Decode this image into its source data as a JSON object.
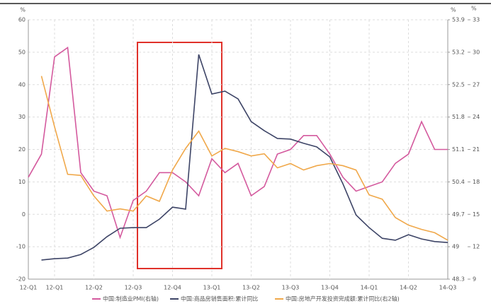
{
  "chart_data": {
    "type": "line",
    "axis_units": {
      "left": "%",
      "right": "%",
      "right2": "%"
    },
    "categories": [
      "12-Q1",
      null,
      "12-Q1",
      null,
      null,
      "12-Q2",
      null,
      null,
      "12-Q3",
      null,
      null,
      "12-Q4",
      null,
      null,
      "13-Q1",
      null,
      null,
      "13-Q2",
      null,
      null,
      "13-Q3",
      null,
      null,
      "13-Q4",
      null,
      null,
      "14-Q1",
      null,
      null,
      "14-Q2",
      null,
      null,
      "14-Q3"
    ],
    "ylim": [
      -20,
      60
    ],
    "yticks": [
      -20,
      -10,
      0,
      10,
      20,
      30,
      40,
      50,
      60
    ],
    "y2lim": [
      48.3,
      53.9
    ],
    "y2ticks": [
      48.3,
      49,
      49.7,
      50.4,
      51.1,
      51.8,
      52.5,
      53.2,
      53.9
    ],
    "y3lim": [
      9,
      33
    ],
    "y3ticks": [
      9,
      12,
      15,
      18,
      21,
      24,
      27,
      30,
      33
    ],
    "grid": true,
    "series": [
      {
        "name": "中国:制造业PMI(右轴)",
        "color": "#d45a9e",
        "axis": "y2",
        "values": [
          50.5,
          51.0,
          53.1,
          53.3,
          50.6,
          50.2,
          50.1,
          49.2,
          50.0,
          50.2,
          50.6,
          50.6,
          50.4,
          50.1,
          50.9,
          50.6,
          50.8,
          50.1,
          50.3,
          51.0,
          51.1,
          51.4,
          51.4,
          51.0,
          50.5,
          50.2,
          50.3,
          50.4,
          50.8,
          51.0,
          51.7,
          51.1,
          51.1
        ]
      },
      {
        "name": "中国:商品房销售面积:累计同比",
        "color": "#3d4466",
        "values": [
          null,
          -14.1,
          -13.7,
          -13.5,
          -12.4,
          -10.2,
          -6.9,
          -4.3,
          -4.1,
          -4.1,
          -1.5,
          2.2,
          1.6,
          49.3,
          37.1,
          38.0,
          35.6,
          28.6,
          25.8,
          23.4,
          23.2,
          21.9,
          20.8,
          17.7,
          9.4,
          -0.2,
          -4.1,
          -7.4,
          -8.0,
          -6.3,
          -7.6,
          -8.4,
          -8.7
        ]
      },
      {
        "name": "中国:房地产开发投资完成额:累计同比(右2轴)",
        "color": "#f0a84a",
        "axis": "y3",
        "values": [
          null,
          27.8,
          23.1,
          18.7,
          18.6,
          16.7,
          15.3,
          15.5,
          15.3,
          16.7,
          16.2,
          19.1,
          21.1,
          22.7,
          20.4,
          21.1,
          20.8,
          20.4,
          20.6,
          19.3,
          19.7,
          19.1,
          19.5,
          19.7,
          19.5,
          19.1,
          16.8,
          16.4,
          14.7,
          14.0,
          13.6,
          13.3,
          12.6
        ]
      }
    ]
  }
}
